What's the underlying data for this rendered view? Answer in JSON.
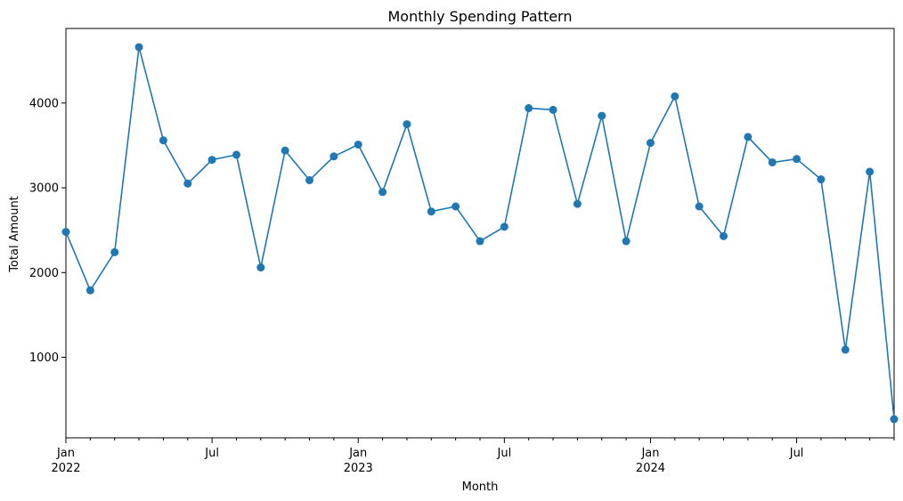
{
  "chart_data": {
    "type": "line",
    "title": "Monthly Spending Pattern",
    "xlabel": "Month",
    "ylabel": "Total Amount",
    "grid": false,
    "legend": "none",
    "xlim": [
      "2022-01",
      "2024-11"
    ],
    "ylim": [
      50,
      4880
    ],
    "x": [
      "2022-01",
      "2022-02",
      "2022-03",
      "2022-04",
      "2022-05",
      "2022-06",
      "2022-07",
      "2022-08",
      "2022-09",
      "2022-10",
      "2022-11",
      "2022-12",
      "2023-01",
      "2023-02",
      "2023-03",
      "2023-04",
      "2023-05",
      "2023-06",
      "2023-07",
      "2023-08",
      "2023-09",
      "2023-10",
      "2023-11",
      "2023-12",
      "2024-01",
      "2024-02",
      "2024-03",
      "2024-04",
      "2024-05",
      "2024-06",
      "2024-07",
      "2024-08",
      "2024-09",
      "2024-10",
      "2024-11"
    ],
    "series": [
      {
        "color": "#1f77b4",
        "values": [
          2480,
          1790,
          2240,
          4660,
          3560,
          3050,
          3330,
          3390,
          2060,
          3440,
          3090,
          3370,
          3510,
          2950,
          3750,
          2720,
          2780,
          2370,
          2540,
          3940,
          3920,
          2810,
          3850,
          2370,
          3530,
          4080,
          2780,
          2430,
          3600,
          3300,
          3340,
          3100,
          1090,
          3190,
          270
        ]
      }
    ],
    "yticks": [
      "1000",
      "2000",
      "3000",
      "4000"
    ],
    "xticks_major": [
      {
        "at": "2022-01",
        "label": "Jan",
        "year": "2022"
      },
      {
        "at": "2022-07",
        "label": "Jul",
        "year": ""
      },
      {
        "at": "2023-01",
        "label": "Jan",
        "year": "2023"
      },
      {
        "at": "2023-07",
        "label": "Jul",
        "year": ""
      },
      {
        "at": "2024-01",
        "label": "Jan",
        "year": "2024"
      },
      {
        "at": "2024-07",
        "label": "Jul",
        "year": ""
      }
    ]
  }
}
